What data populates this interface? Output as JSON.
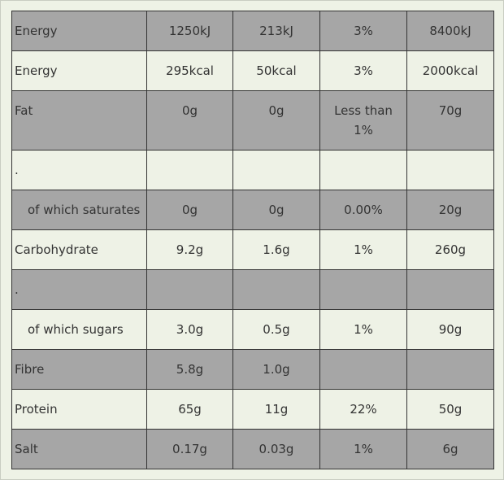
{
  "table": {
    "rows": [
      [
        "Energy",
        "1250kJ",
        "213kJ",
        "3%",
        "8400kJ"
      ],
      [
        "Energy",
        "295kcal",
        "50kcal",
        "3%",
        "2000kcal"
      ],
      [
        "Fat",
        "0g",
        "0g",
        "Less than 1%",
        "70g"
      ],
      [
        ".",
        null,
        null,
        null,
        null
      ],
      [
        "of which saturates",
        "0g",
        "0g",
        "0.00%",
        "20g"
      ],
      [
        "Carbohydrate",
        "9.2g",
        "1.6g",
        "1%",
        "260g"
      ],
      [
        ".",
        null,
        null,
        null,
        null
      ],
      [
        "of which sugars",
        "3.0g",
        "0.5g",
        "1%",
        "90g"
      ],
      [
        "Fibre",
        "5.8g",
        "1.0g",
        null,
        null
      ],
      [
        "Protein",
        "65g",
        "11g",
        "22%",
        "50g"
      ],
      [
        "Salt",
        "0.17g",
        "0.03g",
        "1%",
        "6g"
      ]
    ]
  }
}
